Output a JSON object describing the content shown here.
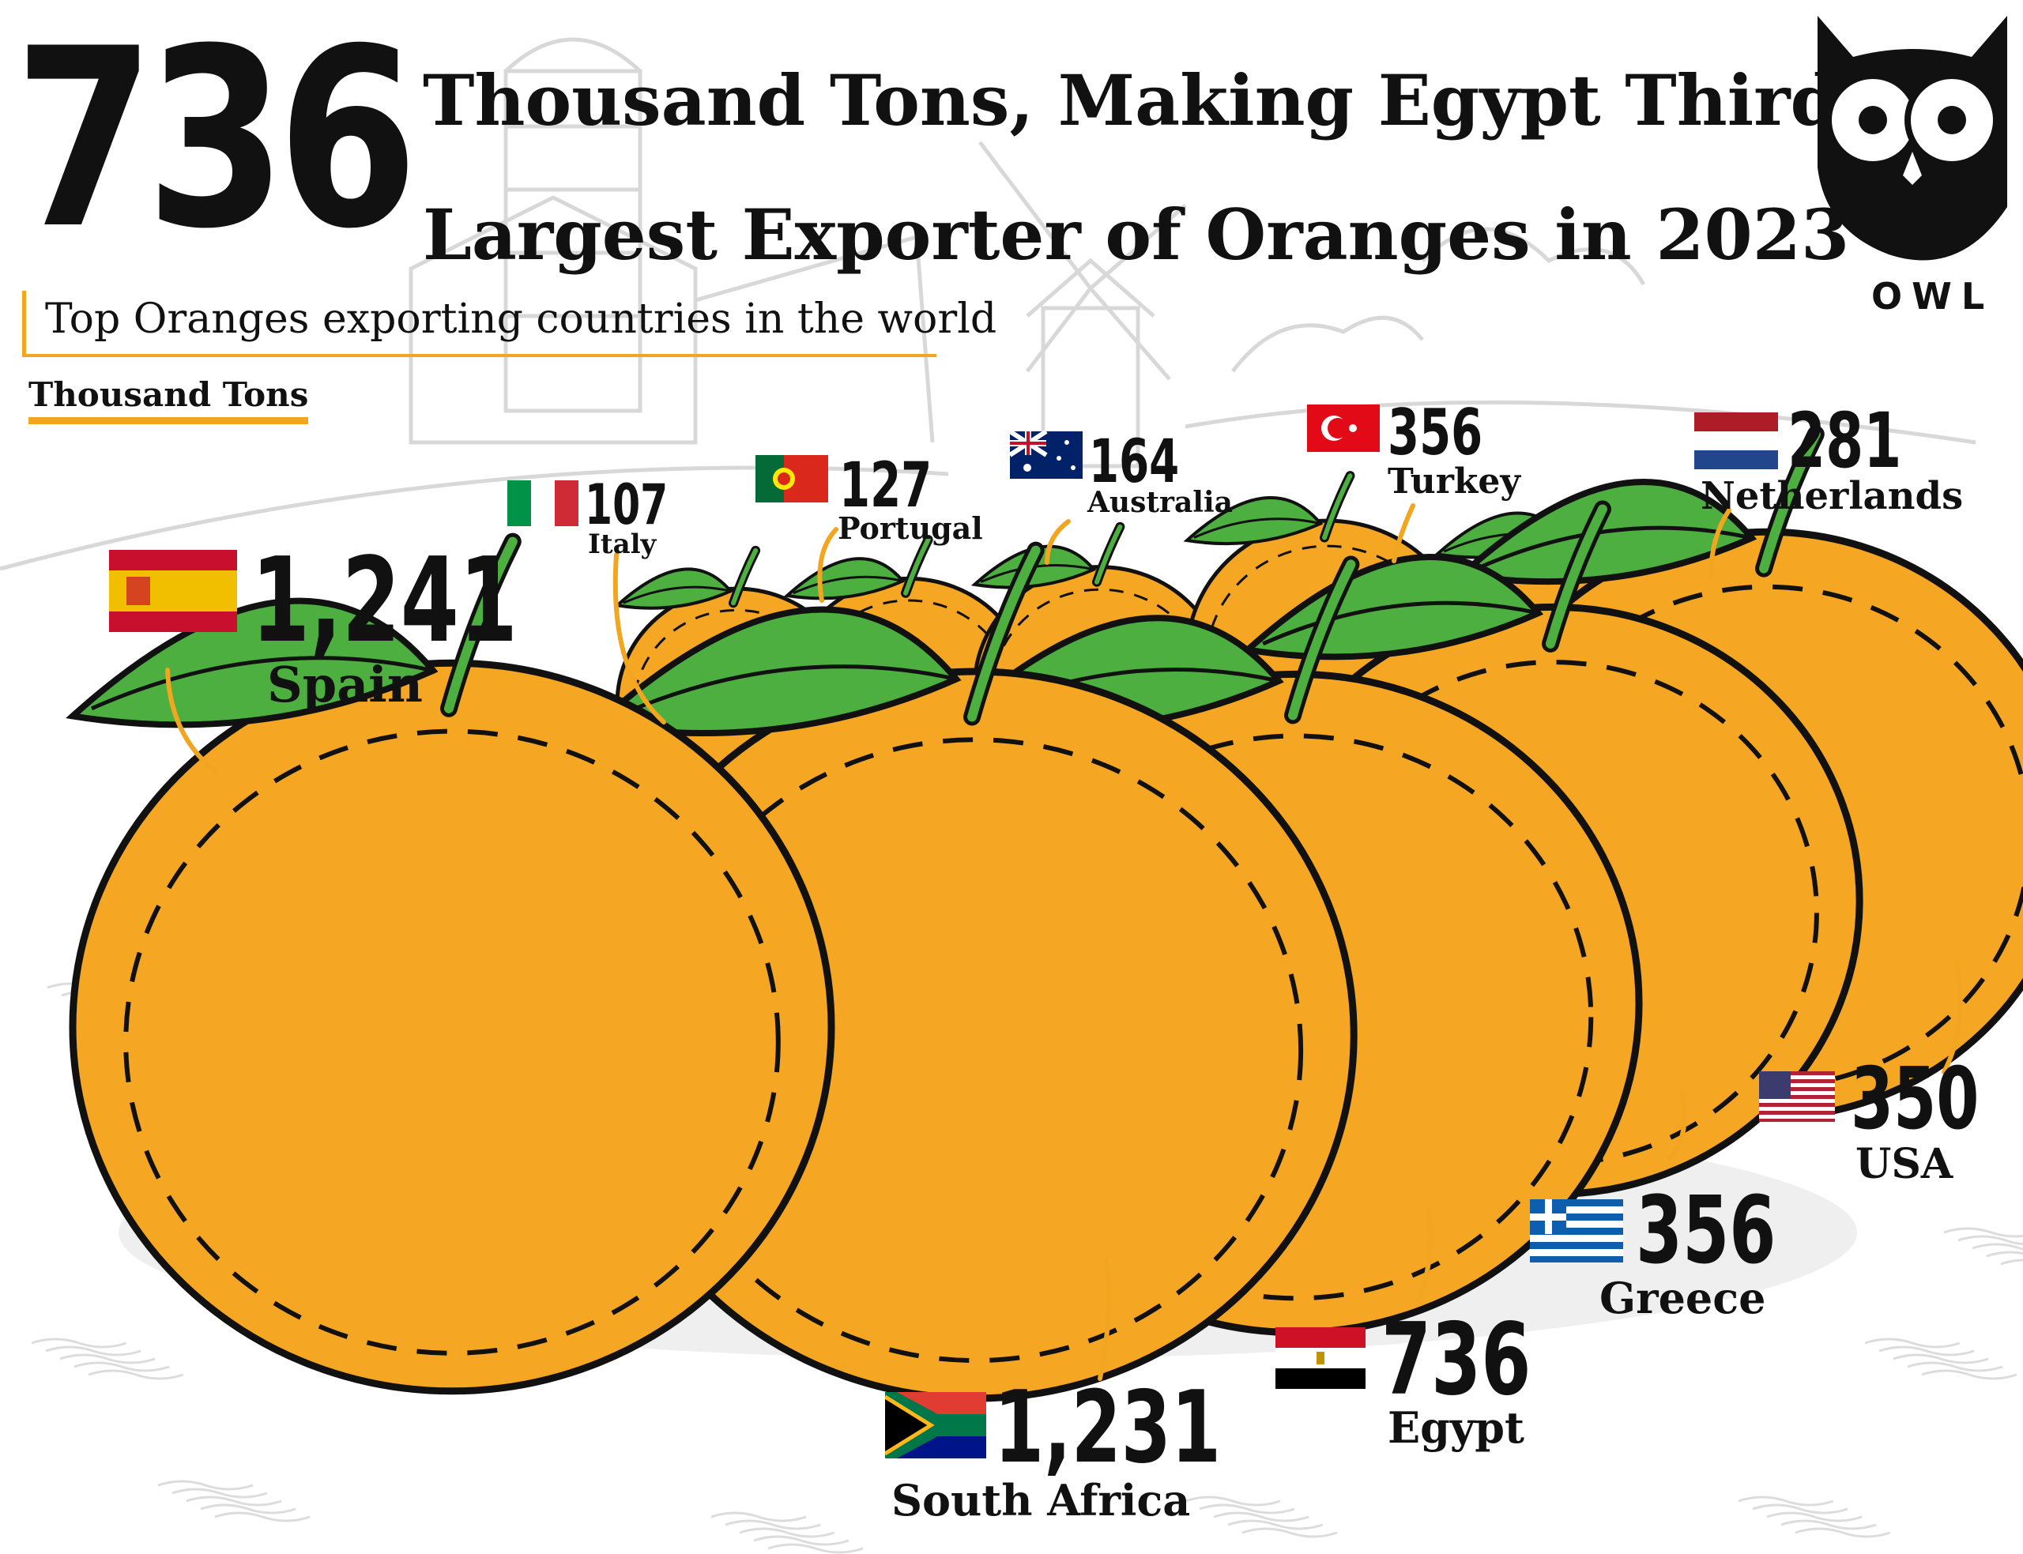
{
  "header": {
    "big_number": "736",
    "headline_line1": "Thousand Tons, Making Egypt Third",
    "headline_line2": "Largest Exporter of Oranges in 2023",
    "subtitle": "Top Oranges exporting countries in the world",
    "unit": "Thousand Tons"
  },
  "logo": {
    "text": "OWL",
    "icon": "owl-icon"
  },
  "colors": {
    "orange": "#f5a623",
    "leaf": "#4caf3f",
    "accent": "#f2a51f",
    "sketch": "#d9d9d9"
  },
  "chart_data": {
    "type": "pictorial",
    "title": "Top Oranges exporting countries in the world",
    "unit": "Thousand Tons",
    "categories": [
      "Spain",
      "South Africa",
      "Egypt",
      "Greece",
      "USA",
      "Italy",
      "Portugal",
      "Australia",
      "Turkey",
      "Netherlands"
    ],
    "values": [
      1241,
      1231,
      736,
      356,
      350,
      107,
      127,
      164,
      356,
      281
    ],
    "labels": [
      "1,241",
      "1,231",
      "736",
      "356",
      "350",
      "107",
      "127",
      "164",
      "356",
      "281"
    ],
    "flags": [
      "spain-flag",
      "south-africa-flag",
      "egypt-flag",
      "greece-flag",
      "usa-flag",
      "italy-flag",
      "portugal-flag",
      "australia-flag",
      "turkey-flag",
      "netherlands-flag"
    ]
  }
}
